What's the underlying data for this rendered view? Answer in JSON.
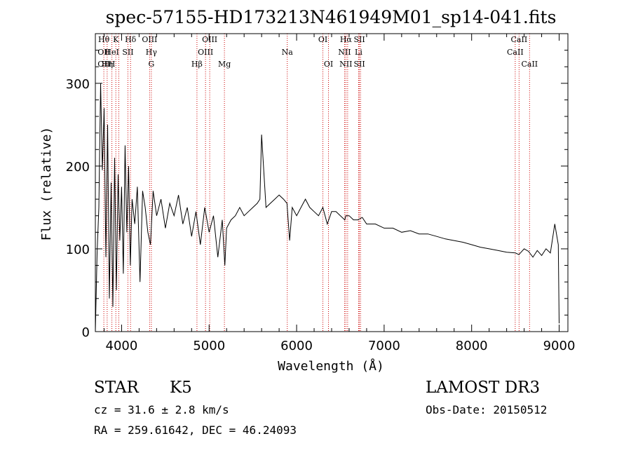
{
  "chart_data": {
    "type": "line",
    "title": "spec-57155-HD173213N461949M01_sp14-041.fits",
    "xlabel": "Wavelength (Å)",
    "ylabel": "Flux (relative)",
    "xlim": [
      3700,
      9100
    ],
    "ylim": [
      0,
      360
    ],
    "xticks": [
      4000,
      5000,
      6000,
      7000,
      8000,
      9000
    ],
    "yticks": [
      0,
      100,
      200,
      300
    ],
    "series": [
      {
        "name": "spectrum",
        "x": [
          3700,
          3720,
          3740,
          3760,
          3780,
          3800,
          3820,
          3840,
          3860,
          3880,
          3900,
          3920,
          3940,
          3960,
          3980,
          4000,
          4020,
          4040,
          4060,
          4080,
          4100,
          4120,
          4150,
          4180,
          4210,
          4240,
          4270,
          4300,
          4330,
          4360,
          4400,
          4450,
          4500,
          4550,
          4600,
          4650,
          4700,
          4750,
          4800,
          4850,
          4900,
          4950,
          5000,
          5050,
          5100,
          5150,
          5180,
          5200,
          5250,
          5300,
          5350,
          5400,
          5450,
          5500,
          5550,
          5580,
          5600,
          5650,
          5700,
          5750,
          5800,
          5850,
          5890,
          5920,
          5950,
          6000,
          6050,
          6100,
          6150,
          6200,
          6250,
          6300,
          6350,
          6400,
          6450,
          6500,
          6550,
          6563,
          6600,
          6650,
          6700,
          6750,
          6800,
          6900,
          7000,
          7100,
          7200,
          7300,
          7400,
          7500,
          7600,
          7700,
          7800,
          7900,
          8000,
          8100,
          8200,
          8300,
          8400,
          8500,
          8540,
          8600,
          8650,
          8700,
          8750,
          8800,
          8850,
          8900,
          8950,
          8990,
          9000
        ],
        "y": [
          0,
          95,
          150,
          300,
          195,
          270,
          90,
          250,
          40,
          180,
          30,
          210,
          50,
          190,
          110,
          175,
          70,
          225,
          120,
          200,
          80,
          160,
          130,
          175,
          60,
          170,
          150,
          120,
          105,
          170,
          140,
          160,
          125,
          155,
          140,
          165,
          130,
          150,
          115,
          145,
          105,
          150,
          120,
          140,
          90,
          135,
          80,
          125,
          135,
          140,
          150,
          140,
          145,
          150,
          155,
          160,
          238,
          150,
          155,
          160,
          165,
          160,
          155,
          110,
          150,
          140,
          150,
          160,
          150,
          145,
          140,
          150,
          130,
          145,
          145,
          140,
          135,
          140,
          140,
          135,
          135,
          138,
          130,
          130,
          125,
          125,
          120,
          122,
          118,
          118,
          115,
          112,
          110,
          108,
          105,
          102,
          100,
          98,
          96,
          95,
          93,
          100,
          97,
          90,
          98,
          92,
          100,
          95,
          130,
          105,
          10
        ]
      }
    ],
    "lines": [
      {
        "name": "Hε/Hθ",
        "x": 3797,
        "labels": [
          "Hθ",
          "OII",
          "OII"
        ]
      },
      {
        "name": "Hη",
        "x": 3835,
        "labels": [
          "",
          "",
          "Hη"
        ]
      },
      {
        "name": "HeI",
        "x": 3889,
        "labels": [
          "",
          "HeI",
          "H"
        ]
      },
      {
        "name": "K",
        "x": 3934,
        "labels": [
          "K",
          "",
          ""
        ]
      },
      {
        "name": "H",
        "x": 3968,
        "labels": [
          "",
          "",
          ""
        ]
      },
      {
        "name": "SII",
        "x": 4072,
        "labels": [
          "",
          "SII",
          ""
        ]
      },
      {
        "name": "Hδ",
        "x": 4102,
        "labels": [
          "Hδ",
          "",
          ""
        ]
      },
      {
        "name": "OIII",
        "x": 4320,
        "labels": [
          "OIII",
          "",
          ""
        ]
      },
      {
        "name": "Hγ",
        "x": 4340,
        "labels": [
          "",
          "Hγ",
          "G"
        ]
      },
      {
        "name": "Hβ",
        "x": 4861,
        "labels": [
          "",
          "",
          "Hβ"
        ]
      },
      {
        "name": "OIII",
        "x": 4959,
        "labels": [
          "",
          "OIII",
          ""
        ]
      },
      {
        "name": "OIII",
        "x": 5007,
        "labels": [
          "OIII",
          "",
          ""
        ]
      },
      {
        "name": "Mg",
        "x": 5175,
        "labels": [
          "",
          "",
          "Mg"
        ]
      },
      {
        "name": "Na",
        "x": 5893,
        "labels": [
          "",
          "Na",
          ""
        ]
      },
      {
        "name": "OI",
        "x": 6300,
        "labels": [
          "OI",
          "",
          ""
        ]
      },
      {
        "name": "OI",
        "x": 6364,
        "labels": [
          "",
          "",
          "OI"
        ]
      },
      {
        "name": "NII",
        "x": 6548,
        "labels": [
          "",
          "NII",
          ""
        ]
      },
      {
        "name": "Hα",
        "x": 6563,
        "labels": [
          "Hα",
          "",
          "NII"
        ]
      },
      {
        "name": "NII",
        "x": 6583,
        "labels": [
          "",
          "",
          ""
        ]
      },
      {
        "name": "Li",
        "x": 6708,
        "labels": [
          "",
          "Li",
          ""
        ]
      },
      {
        "name": "SII",
        "x": 6717,
        "labels": [
          "SII",
          "",
          "SII"
        ]
      },
      {
        "name": "SII",
        "x": 6731,
        "labels": [
          "",
          "",
          ""
        ]
      },
      {
        "name": "CaII",
        "x": 8498,
        "labels": [
          "",
          "CaII",
          ""
        ]
      },
      {
        "name": "CaII",
        "x": 8542,
        "labels": [
          "CaII",
          "",
          ""
        ]
      },
      {
        "name": "CaII",
        "x": 8662,
        "labels": [
          "",
          "",
          "CaII"
        ]
      }
    ]
  },
  "info": {
    "class_label": "STAR",
    "subclass": "K5",
    "survey": "LAMOST DR3",
    "cz": "cz = 31.6 ± 2.8 km/s",
    "obs_date": "Obs-Date: 20150512",
    "coords": "RA = 259.61642, DEC =  46.24093"
  },
  "colors": {
    "axis": "#000000",
    "line": "#000000",
    "marker": "#cc0000"
  }
}
